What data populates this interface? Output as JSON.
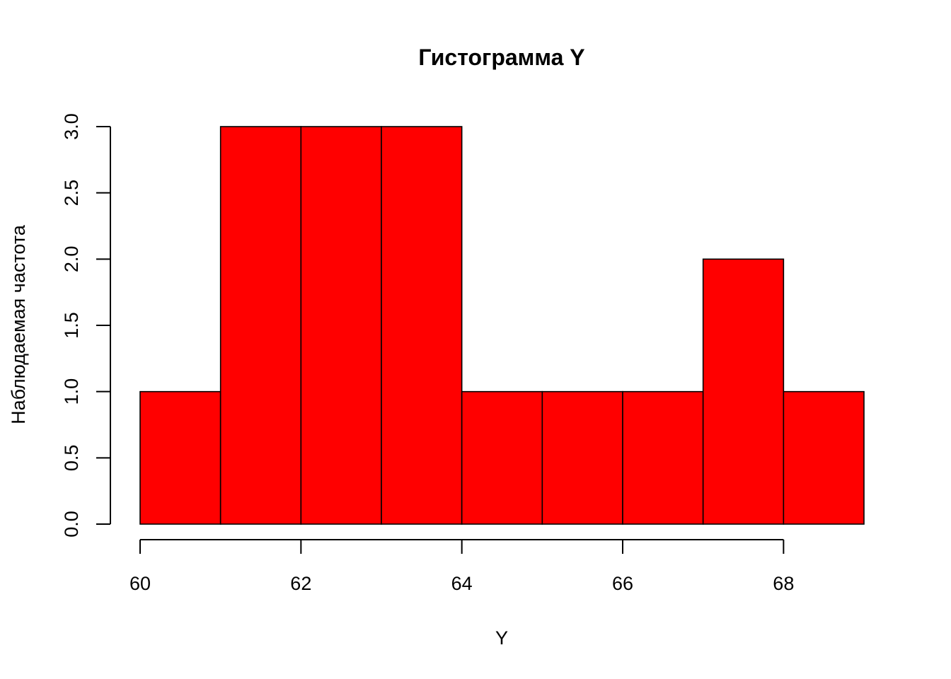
{
  "chart_data": {
    "type": "bar",
    "subtype": "histogram",
    "title": "Гистограмма Y",
    "xlabel": "Y",
    "ylabel": "Наблюдаемая частота",
    "bins": [
      {
        "from": 60,
        "to": 61,
        "count": 1
      },
      {
        "from": 61,
        "to": 62,
        "count": 3
      },
      {
        "from": 62,
        "to": 63,
        "count": 3
      },
      {
        "from": 63,
        "to": 64,
        "count": 3
      },
      {
        "from": 64,
        "to": 65,
        "count": 1
      },
      {
        "from": 65,
        "to": 66,
        "count": 1
      },
      {
        "from": 66,
        "to": 67,
        "count": 1
      },
      {
        "from": 67,
        "to": 68,
        "count": 2
      },
      {
        "from": 68,
        "to": 69,
        "count": 1
      }
    ],
    "xlim": [
      60,
      69
    ],
    "ylim": [
      0,
      3
    ],
    "x_ticks": [
      60,
      62,
      64,
      66,
      68
    ],
    "x_tick_labels": [
      "60",
      "62",
      "64",
      "66",
      "68"
    ],
    "y_ticks": [
      0,
      0.5,
      1,
      1.5,
      2,
      2.5,
      3
    ],
    "y_tick_labels": [
      "0.0",
      "0.5",
      "1.0",
      "1.5",
      "2.0",
      "2.5",
      "3.0"
    ],
    "bar_color": "#ff0000",
    "border_color": "#000000",
    "grid": false,
    "legend": "none"
  }
}
